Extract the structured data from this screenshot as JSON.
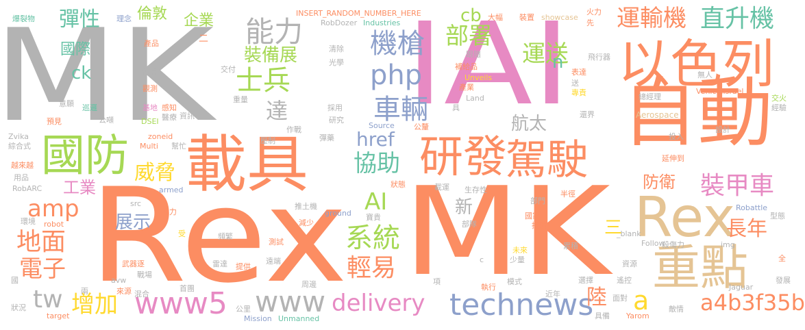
{
  "palette": {
    "gray": "#b3b3b3",
    "orange": "#fc8d62",
    "pink": "#e78ac3",
    "tan": "#e5c494",
    "yellow": "#ffd92f",
    "green": "#a6d854",
    "teal": "#66c2a5",
    "blue": "#8da0cb"
  },
  "words": [
    {
      "text": "MK"
    },
    {
      "text": "Rex"
    },
    {
      "text": "MK"
    },
    {
      "text": "IAI"
    },
    {
      "text": "自動"
    },
    {
      "text": "以色列"
    },
    {
      "text": "載具"
    },
    {
      "text": "研發"
    },
    {
      "text": "駕駛"
    },
    {
      "text": "重點"
    },
    {
      "text": "Rex"
    },
    {
      "text": "國防"
    },
    {
      "text": "能力"
    },
    {
      "text": "機槍"
    },
    {
      "text": "php"
    },
    {
      "text": "車輛"
    },
    {
      "text": "士兵"
    },
    {
      "text": "裝備展"
    },
    {
      "text": "部署"
    },
    {
      "text": "運送"
    },
    {
      "text": "運輸機"
    },
    {
      "text": "直升機"
    },
    {
      "text": "裝甲車"
    },
    {
      "text": "長年"
    },
    {
      "text": "a4b3f35b"
    },
    {
      "text": "technews"
    },
    {
      "text": "delivery"
    },
    {
      "text": "www"
    },
    {
      "text": "www5"
    },
    {
      "text": "增加"
    },
    {
      "text": "tw"
    },
    {
      "text": "電子"
    },
    {
      "text": "地面"
    },
    {
      "text": "amp"
    },
    {
      "text": "工業"
    },
    {
      "text": "威脅"
    },
    {
      "text": "展示"
    },
    {
      "text": "協助"
    },
    {
      "text": "href"
    },
    {
      "text": "AI"
    },
    {
      "text": "系統"
    },
    {
      "text": "輕易"
    },
    {
      "text": "航太"
    },
    {
      "text": "防衛"
    },
    {
      "text": "陸"
    },
    {
      "text": "a"
    },
    {
      "text": "彈性"
    },
    {
      "text": "國際"
    },
    {
      "text": "ck"
    },
    {
      "text": "倫敦"
    },
    {
      "text": "企業"
    },
    {
      "text": "cb"
    },
    {
      "text": "達"
    },
    {
      "text": "n"
    },
    {
      "text": "新"
    },
    {
      "text": "三"
    },
    {
      "text": "INSERT_RANDOM_NUMBER_HERE"
    },
    {
      "text": "RobDozer"
    },
    {
      "text": "Industries"
    },
    {
      "text": "大幅"
    },
    {
      "text": "裝置"
    },
    {
      "text": "showcase"
    },
    {
      "text": "火力"
    },
    {
      "text": "先"
    },
    {
      "text": "飛行器"
    },
    {
      "text": "表達"
    },
    {
      "text": "專責"
    },
    {
      "text": "總經理"
    },
    {
      "text": "無人"
    },
    {
      "text": "VehicleIsrael"
    },
    {
      "text": "交火"
    },
    {
      "text": "經驗"
    },
    {
      "text": "Aerospace"
    },
    {
      "text": "還界"
    },
    {
      "text": "投入"
    },
    {
      "text": "設計"
    },
    {
      "text": "延伸到"
    },
    {
      "text": "爆裂物"
    },
    {
      "text": "理念"
    },
    {
      "text": "產品"
    },
    {
      "text": "傷兵"
    },
    {
      "text": "觀測"
    },
    {
      "text": "意願"
    },
    {
      "text": "巡邏"
    },
    {
      "text": "預見"
    },
    {
      "text": "公噸"
    },
    {
      "text": "基地"
    },
    {
      "text": "感知"
    },
    {
      "text": "醫療"
    },
    {
      "text": "DSEI"
    },
    {
      "text": "資訊"
    },
    {
      "text": "Zvika"
    },
    {
      "text": "綜合式"
    },
    {
      "text": "zoneid"
    },
    {
      "text": "Multi"
    },
    {
      "text": "幫忙"
    },
    {
      "text": "越來越"
    },
    {
      "text": "用品"
    },
    {
      "text": "RobARC"
    },
    {
      "text": "armed"
    },
    {
      "text": "環境"
    },
    {
      "text": "robot"
    },
    {
      "text": "src"
    },
    {
      "text": "人力"
    },
    {
      "text": "受"
    },
    {
      "text": "頻繁"
    },
    {
      "text": "武器逐"
    },
    {
      "text": "戰場"
    },
    {
      "text": "avw"
    },
    {
      "text": "兩"
    },
    {
      "text": "來源"
    },
    {
      "text": "混合"
    },
    {
      "text": "國"
    },
    {
      "text": "狀況"
    },
    {
      "text": "target"
    },
    {
      "text": "首團"
    },
    {
      "text": "雷達"
    },
    {
      "text": "提供"
    },
    {
      "text": "公里"
    },
    {
      "text": "Mission"
    },
    {
      "text": "Unmanned"
    },
    {
      "text": "遠端"
    },
    {
      "text": "周邊"
    },
    {
      "text": "測試"
    },
    {
      "text": "減少"
    },
    {
      "text": "推土機"
    },
    {
      "text": "ground"
    },
    {
      "text": "寶貴"
    },
    {
      "text": "狀態"
    },
    {
      "text": "載運"
    },
    {
      "text": "生存性"
    },
    {
      "text": "部門"
    },
    {
      "text": "半徑"
    },
    {
      "text": "國家"
    },
    {
      "text": "部隊"
    },
    {
      "text": "採購"
    },
    {
      "text": "未來"
    },
    {
      "text": "少量"
    },
    {
      "text": "累積"
    },
    {
      "text": "殺傷力"
    },
    {
      "text": "img"
    },
    {
      "text": "Follow"
    },
    {
      "text": "_blank"
    },
    {
      "text": "Robattle"
    },
    {
      "text": "型態"
    },
    {
      "text": "全"
    },
    {
      "text": "發展"
    },
    {
      "text": "Jaguar"
    },
    {
      "text": "敵情"
    },
    {
      "text": "Yarom"
    },
    {
      "text": "具備"
    },
    {
      "text": "面對"
    },
    {
      "text": "近年"
    },
    {
      "text": "執行"
    },
    {
      "text": "項"
    },
    {
      "text": "模式"
    },
    {
      "text": "選擇"
    },
    {
      "text": "遙控"
    },
    {
      "text": "資源"
    },
    {
      "text": "c"
    },
    {
      "text": "二"
    },
    {
      "text": "交付"
    },
    {
      "text": "重量"
    },
    {
      "text": "光學"
    },
    {
      "text": "清除"
    },
    {
      "text": "採用"
    },
    {
      "text": "研究"
    },
    {
      "text": "公釐"
    },
    {
      "text": "彈藥"
    },
    {
      "text": "作戰"
    },
    {
      "text": "壓制"
    },
    {
      "text": "Source"
    },
    {
      "text": "Land"
    },
    {
      "text": "具"
    },
    {
      "text": "產業"
    },
    {
      "text": "Unveils"
    },
    {
      "text": "補給品"
    },
    {
      "text": "跟隨"
    },
    {
      "text": "送"
    }
  ]
}
